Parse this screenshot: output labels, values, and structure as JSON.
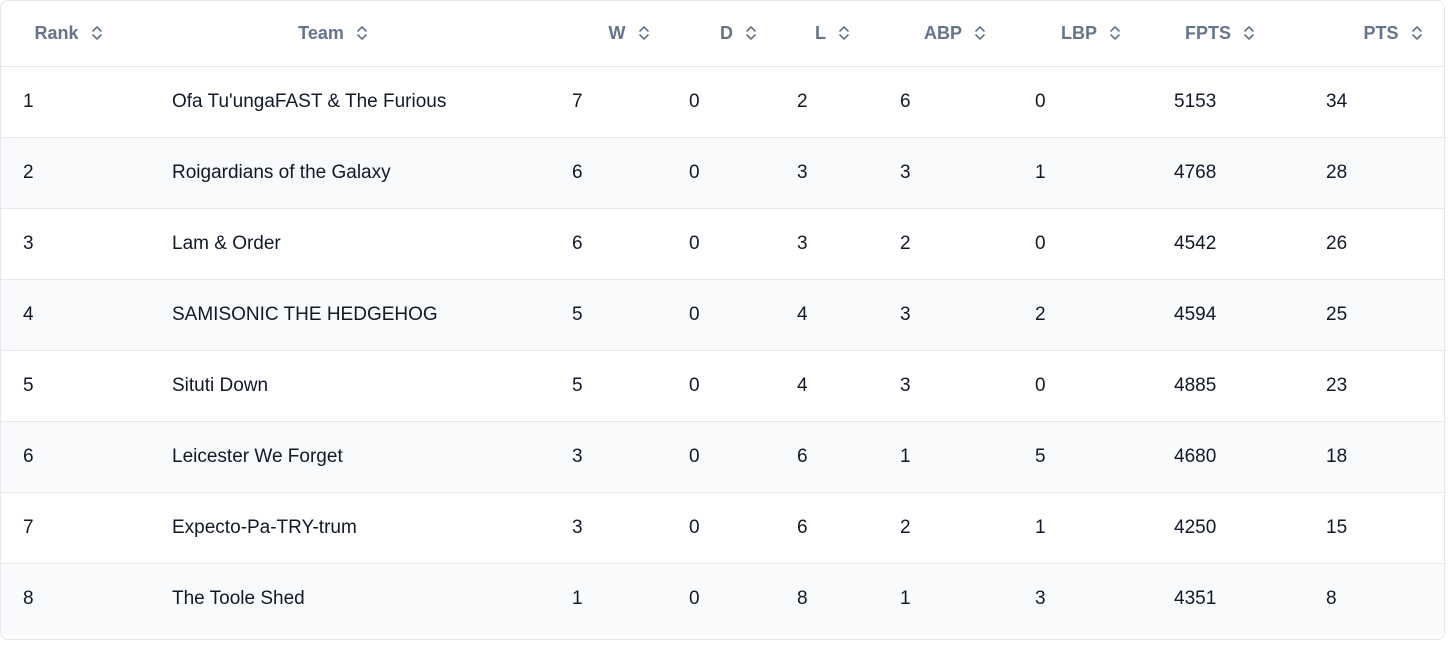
{
  "table": {
    "headers": [
      {
        "key": "rank",
        "label": "Rank"
      },
      {
        "key": "team",
        "label": "Team"
      },
      {
        "key": "w",
        "label": "W"
      },
      {
        "key": "d",
        "label": "D"
      },
      {
        "key": "l",
        "label": "L"
      },
      {
        "key": "abp",
        "label": "ABP"
      },
      {
        "key": "lbp",
        "label": "LBP"
      },
      {
        "key": "fpts",
        "label": "FPTS"
      },
      {
        "key": "pts",
        "label": "PTS"
      }
    ],
    "rows": [
      [
        "1",
        "Ofa Tu'ungaFAST & The Furious",
        "7",
        "0",
        "2",
        "6",
        "0",
        "5153",
        "34"
      ],
      [
        "2",
        "Roigardians of the Galaxy",
        "6",
        "0",
        "3",
        "3",
        "1",
        "4768",
        "28"
      ],
      [
        "3",
        "Lam & Order",
        "6",
        "0",
        "3",
        "2",
        "0",
        "4542",
        "26"
      ],
      [
        "4",
        "SAMISONIC THE HEDGEHOG",
        "5",
        "0",
        "4",
        "3",
        "2",
        "4594",
        "25"
      ],
      [
        "5",
        "Situti Down",
        "5",
        "0",
        "4",
        "3",
        "0",
        "4885",
        "23"
      ],
      [
        "6",
        "Leicester We Forget",
        "3",
        "0",
        "6",
        "1",
        "5",
        "4680",
        "18"
      ],
      [
        "7",
        "Expecto-Pa-TRY-trum",
        "3",
        "0",
        "6",
        "2",
        "1",
        "4250",
        "15"
      ],
      [
        "8",
        "The Toole Shed",
        "1",
        "0",
        "8",
        "1",
        "3",
        "4351",
        "8"
      ]
    ]
  },
  "icons": {
    "sort": "sort-chevrons-icon"
  },
  "colors": {
    "header_text": "#64748b",
    "body_text": "#111827",
    "stripe": "#f8fafc",
    "border": "#e5e7eb"
  }
}
